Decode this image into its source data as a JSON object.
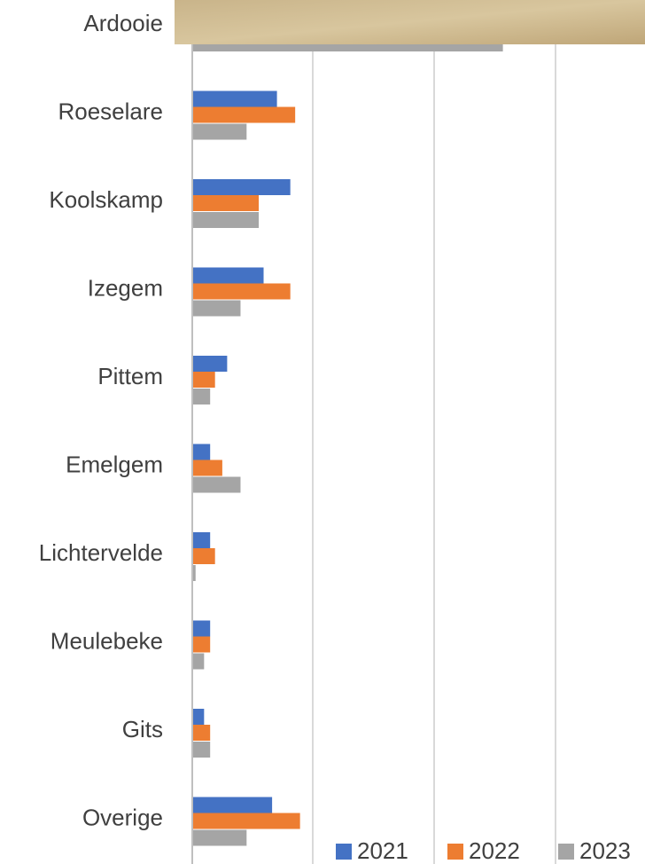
{
  "chart_data": {
    "type": "bar",
    "orientation": "horizontal",
    "categories": [
      "Ardooie",
      "Roeselare",
      "Koolskamp",
      "Izegem",
      "Pittem",
      "Emelgem",
      "Lichtervelde",
      "Meulebeke",
      "Gits",
      "Overige"
    ],
    "series": [
      {
        "name": "2021",
        "color": "#4472c4",
        "values": [
          null,
          6.9,
          8.0,
          5.8,
          2.8,
          1.4,
          1.4,
          1.4,
          0.9,
          6.5
        ]
      },
      {
        "name": "2022",
        "color": "#ed7d31",
        "values": [
          null,
          8.4,
          5.4,
          8.0,
          1.8,
          2.4,
          1.8,
          1.4,
          1.4,
          8.8
        ]
      },
      {
        "name": "2023",
        "color": "#a5a5a5",
        "values": [
          25.5,
          4.4,
          5.4,
          3.9,
          1.4,
          3.9,
          0.2,
          0.9,
          1.4,
          4.4
        ]
      }
    ],
    "xlim": [
      0,
      37.2
    ]
  }
}
